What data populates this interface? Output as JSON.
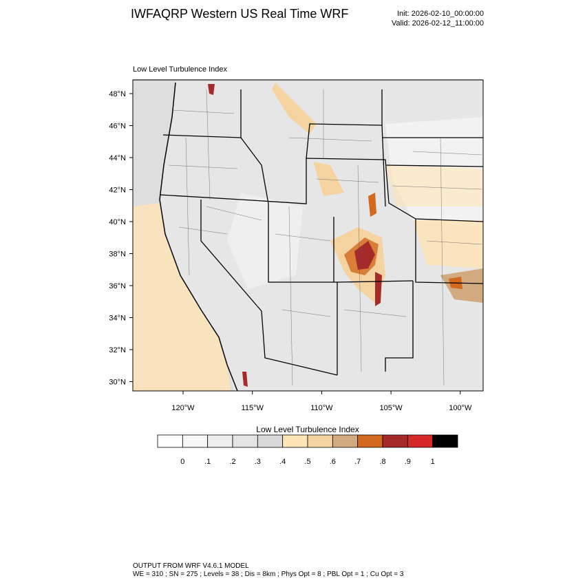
{
  "header": {
    "title": "IWFAQRP Western US Real Time WRF",
    "init": "Init: 2026-02-10_00:00:00",
    "valid": "Valid: 2026-02-12_11:00:00"
  },
  "map": {
    "subtitle": "Low Level Turbulence Index",
    "lat_labels": [
      "48°N",
      "46°N",
      "44°N",
      "42°N",
      "40°N",
      "38°N",
      "36°N",
      "34°N",
      "32°N",
      "30°N"
    ],
    "lon_labels": [
      "120°W",
      "115°W",
      "110°W",
      "105°W",
      "100°W"
    ]
  },
  "colorbar": {
    "title": "Low Level Turbulence Index",
    "labels": [
      "0",
      ".1",
      ".2",
      ".3",
      ".4",
      ".5",
      ".6",
      ".7",
      ".8",
      ".9",
      "1"
    ],
    "colors": [
      "#ffffff",
      "#f7f7f7",
      "#eeeeee",
      "#e4e4e4",
      "#d9d9d9",
      "#ffe4b5",
      "#f5d3a0",
      "#d2aa80",
      "#d2691e",
      "#a52a2a",
      "#d62828",
      "#000000"
    ]
  },
  "footer": {
    "line1": "OUTPUT FROM WRF V4.6.1 MODEL",
    "line2": "WE = 310 ; SN = 275 ; Levels = 38 ; Dis = 8km ; Phys Opt = 8 ; PBL Opt = 1 ; Cu Opt = 3"
  }
}
